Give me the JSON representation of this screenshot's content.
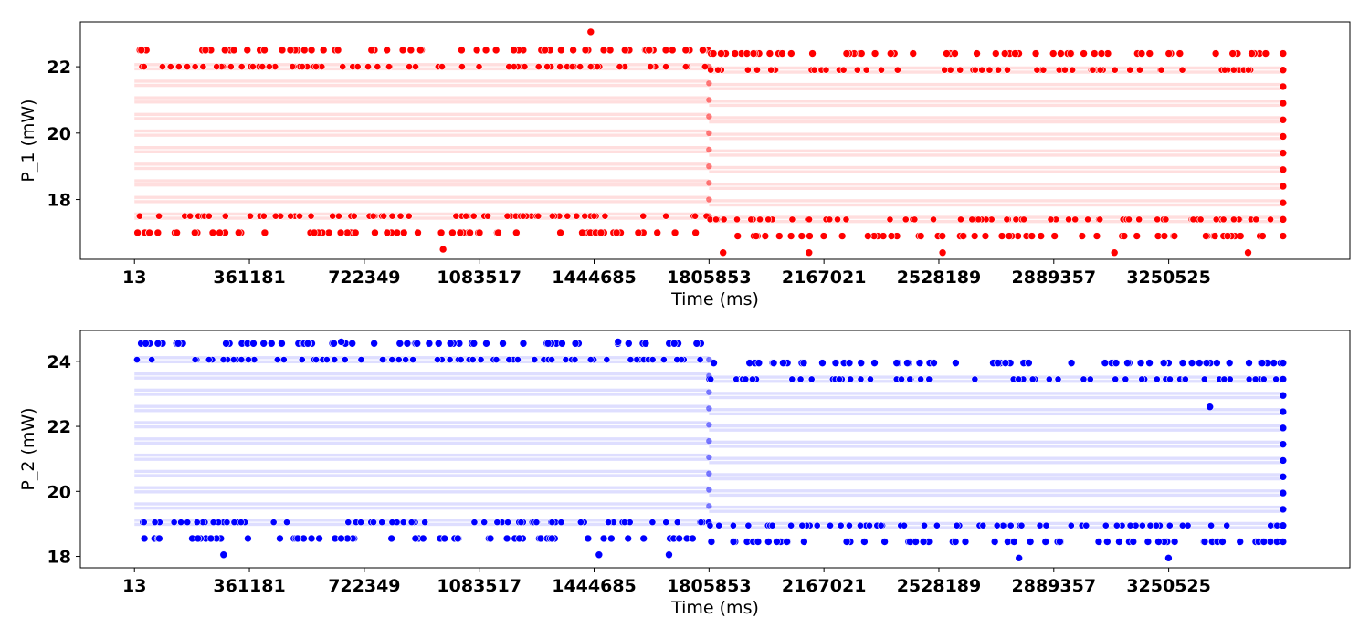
{
  "chart_data": [
    {
      "type": "scatter",
      "xlabel": "Time (ms)",
      "ylabel": "P_1 (mW)",
      "xlim": [
        -170000,
        3820000
      ],
      "ylim": [
        16.2,
        23.35
      ],
      "xticks": [
        13,
        361181,
        722349,
        1083517,
        1444685,
        1805853,
        2167021,
        2528189,
        2889357,
        3250525
      ],
      "xtick_labels": [
        "13",
        "361181",
        "722349",
        "1083517",
        "1444685",
        "1805853",
        "2167021",
        "2528189",
        "2889357",
        "3250525"
      ],
      "yticks": [
        18,
        20,
        22
      ],
      "ytick_labels": [
        "18",
        "20",
        "22"
      ],
      "grid": false,
      "color": "#ff0000",
      "x_end": 3610000,
      "change_point": 1805853,
      "series": [
        {
          "segment": "before",
          "x_range": [
            13,
            1805853
          ],
          "band_levels": [
            17.5,
            18.0,
            18.5,
            19.0,
            19.5,
            20.0,
            20.5,
            21.0,
            21.5,
            22.0
          ],
          "outer_levels": [
            17.0,
            22.5
          ],
          "extreme_values": [
            {
              "x": 1434000,
              "y": 23.05
            },
            {
              "x": 970000,
              "y": 16.5
            }
          ]
        },
        {
          "segment": "after",
          "x_range": [
            1805853,
            3610000
          ],
          "band_levels": [
            17.4,
            17.9,
            18.4,
            18.9,
            19.4,
            19.9,
            20.4,
            20.9,
            21.4,
            21.9
          ],
          "outer_levels": [
            16.9,
            22.4
          ],
          "extreme_values": [
            {
              "x": 1850000,
              "y": 16.4
            },
            {
              "x": 2120000,
              "y": 16.4
            },
            {
              "x": 2540000,
              "y": 16.4
            },
            {
              "x": 3080000,
              "y": 16.4
            },
            {
              "x": 3500000,
              "y": 16.4
            }
          ]
        }
      ]
    },
    {
      "type": "scatter",
      "xlabel": "Time (ms)",
      "ylabel": "P_2 (mW)",
      "xlim": [
        -170000,
        3820000
      ],
      "ylim": [
        17.65,
        24.95
      ],
      "xticks": [
        13,
        361181,
        722349,
        1083517,
        1444685,
        1805853,
        2167021,
        2528189,
        2889357,
        3250525
      ],
      "xtick_labels": [
        "13",
        "361181",
        "722349",
        "1083517",
        "1444685",
        "1805853",
        "2167021",
        "2528189",
        "2889357",
        "3250525"
      ],
      "yticks": [
        18,
        20,
        22,
        24
      ],
      "ytick_labels": [
        "18",
        "20",
        "22",
        "24"
      ],
      "grid": false,
      "color": "#0000ff",
      "x_end": 3610000,
      "change_point": 1805853,
      "series": [
        {
          "segment": "before",
          "x_range": [
            13,
            1805853
          ],
          "band_levels": [
            19.05,
            19.55,
            20.05,
            20.55,
            21.05,
            21.55,
            22.05,
            22.55,
            23.05,
            23.55,
            24.05
          ],
          "outer_levels": [
            18.55,
            24.55
          ],
          "extreme_values": [
            {
              "x": 280000,
              "y": 18.05
            },
            {
              "x": 1460000,
              "y": 18.05
            },
            {
              "x": 1680000,
              "y": 18.05
            },
            {
              "x": 650000,
              "y": 24.6
            },
            {
              "x": 1520000,
              "y": 24.6
            }
          ]
        },
        {
          "segment": "after",
          "x_range": [
            1805853,
            3610000
          ],
          "band_levels": [
            18.95,
            19.45,
            19.95,
            20.45,
            20.95,
            21.45,
            21.95,
            22.45,
            22.95,
            23.45
          ],
          "outer_levels": [
            18.45,
            23.95
          ],
          "extreme_values": [
            {
              "x": 2780000,
              "y": 17.95
            },
            {
              "x": 3250000,
              "y": 17.95
            },
            {
              "x": 3380000,
              "y": 22.6
            }
          ]
        }
      ]
    }
  ]
}
